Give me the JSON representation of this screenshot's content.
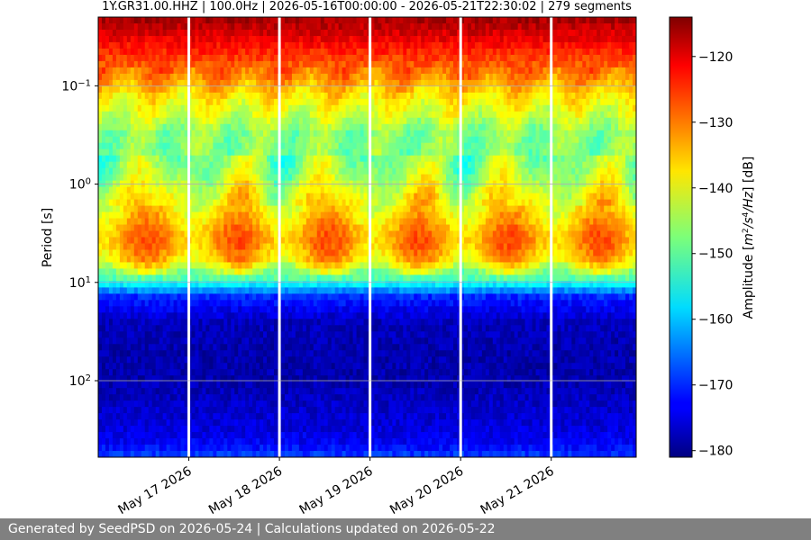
{
  "chart_data": {
    "type": "heatmap",
    "title": "1Y.GR31.00.HHZ | 100.0Hz | 2026-05-16T00:00:00 - 2026-05-21T22:30:02 | 279 segments",
    "ylabel": "Period [s]",
    "colorbar_label_parts": [
      "Amplitude [",
      "m",
      "2",
      "/s",
      "4",
      "/Hz",
      "] [dB]"
    ],
    "x_range": [
      "2026-05-16T00:00:00",
      "2026-05-21T22:30:02"
    ],
    "x_ticks": [
      {
        "date": "2026-05-17",
        "label": "May 17 2026"
      },
      {
        "date": "2026-05-18",
        "label": "May 18 2026"
      },
      {
        "date": "2026-05-19",
        "label": "May 19 2026"
      },
      {
        "date": "2026-05-20",
        "label": "May 20 2026"
      },
      {
        "date": "2026-05-21",
        "label": "May 21 2026"
      }
    ],
    "y_scale": "log",
    "y_inverted": true,
    "y_range": [
      0.02,
      600
    ],
    "y_ticks": [
      {
        "value": 0.1,
        "base": "10",
        "exp": "−1"
      },
      {
        "value": 1,
        "base": "10",
        "exp": "0"
      },
      {
        "value": 10,
        "base": "10",
        "exp": "1"
      },
      {
        "value": 100,
        "base": "10",
        "exp": "2"
      }
    ],
    "colorbar": {
      "colormap": "jet",
      "range": [
        -181,
        -114
      ],
      "ticks": [
        -120,
        -130,
        -140,
        -150,
        -160,
        -170,
        -180
      ],
      "tick_labels": [
        "−120",
        "−130",
        "−140",
        "−150",
        "−160",
        "−170",
        "−180"
      ]
    },
    "data_gaps": [
      "2026-05-17T00:00:00",
      "2026-05-18T00:00:00",
      "2026-05-19T00:00:00",
      "2026-05-20T00:00:00",
      "2026-05-21T00:00:00"
    ],
    "amplitude_profile": {
      "periods": [
        0.02,
        0.03,
        0.05,
        0.08,
        0.12,
        0.2,
        0.3,
        0.5,
        0.8,
        1.2,
        2,
        3,
        4,
        6,
        9,
        14,
        25,
        50,
        100,
        200,
        300,
        450,
        600
      ],
      "amplitudes_db": [
        -116,
        -120,
        -126,
        -131,
        -137,
        -142,
        -147,
        -147,
        -145,
        -141,
        -137,
        -133,
        -132,
        -136,
        -150,
        -170,
        -177,
        -178,
        -178,
        -176,
        -175,
        -173,
        -168
      ]
    },
    "grid": true
  },
  "footer": "Generated by SeedPSD on 2026-05-24 | Calculations updated on 2026-05-22"
}
